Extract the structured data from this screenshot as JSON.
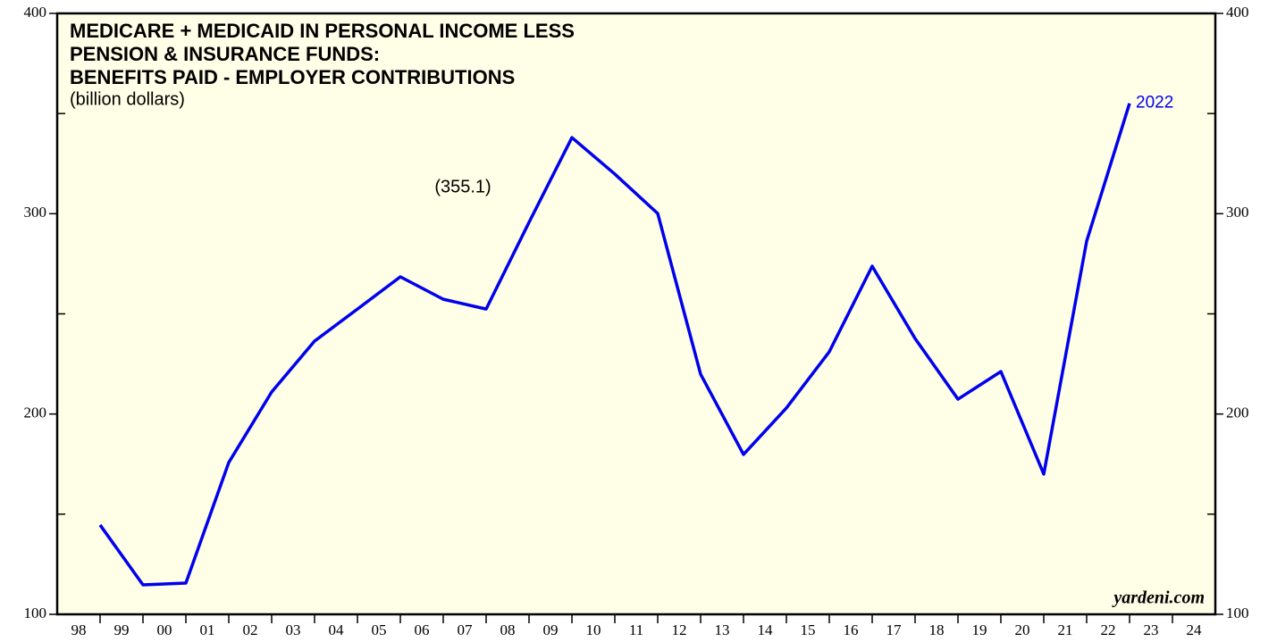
{
  "chart_data": {
    "type": "line",
    "title": [
      "MEDICARE + MEDICAID IN PERSONAL INCOME LESS",
      "PENSION & INSURANCE FUNDS:",
      "BENEFITS PAID - EMPLOYER CONTRIBUTIONS"
    ],
    "subtitle": "(billion dollars)",
    "annotation": "(355.1)",
    "end_label": "2022",
    "source": "yardeni.com",
    "categories": [
      "98",
      "99",
      "00",
      "01",
      "02",
      "03",
      "04",
      "05",
      "06",
      "07",
      "08",
      "09",
      "10",
      "11",
      "12",
      "13",
      "14",
      "15",
      "16",
      "17",
      "18",
      "19",
      "20",
      "21",
      "22",
      "23",
      "24"
    ],
    "series": [
      {
        "name": "2022",
        "color": "#0000ee",
        "values": [
          144.6,
          114.7,
          115.6,
          175.8,
          211.0,
          236.4,
          252.4,
          268.5,
          257.3,
          252.4,
          295.7,
          338.0,
          319.8,
          300.1,
          219.9,
          179.8,
          203.0,
          231.1,
          273.8,
          237.7,
          207.4,
          221.2,
          170.0,
          286.3,
          355.1,
          null,
          null
        ]
      }
    ],
    "ylim": [
      100,
      400
    ],
    "yticks": [
      100,
      200,
      300,
      400
    ],
    "yminorticks": [
      150,
      250,
      350
    ]
  }
}
